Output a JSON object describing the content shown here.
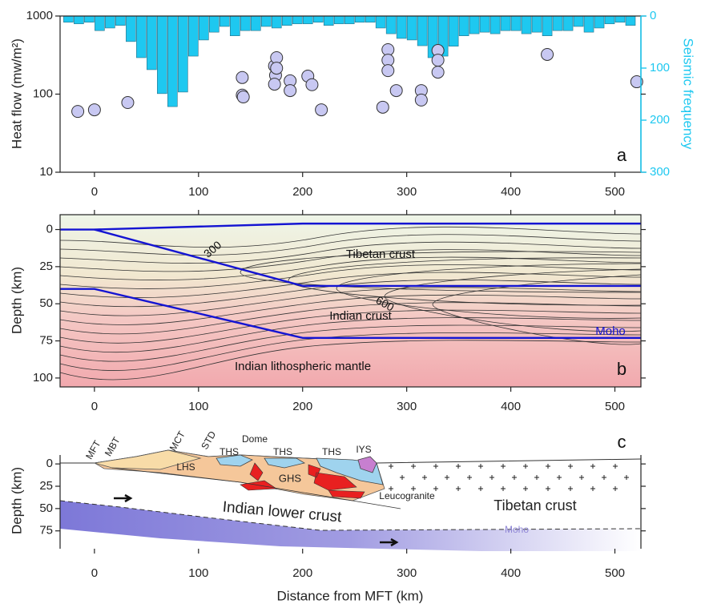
{
  "chart_data": [
    {
      "type": "combo",
      "ylabel": "Heat flow (mw/m²)",
      "y2label": "Seismic frequency",
      "xlim": [
        -33,
        525
      ],
      "xticks": [
        0,
        100,
        200,
        300,
        400,
        500
      ],
      "ylim": [
        10,
        1000
      ],
      "yticks": [
        10,
        100,
        1000
      ],
      "log_y": true,
      "y2lim": [
        0,
        300
      ],
      "y2ticks": [
        0,
        100,
        200,
        300
      ],
      "y2_inverted": true,
      "y2_color": "#1ec8f0",
      "series": [
        {
          "type": "bar",
          "axis": "y2",
          "color": "#1ec8f0",
          "x": [
            -25,
            -15,
            -5,
            5,
            15,
            25,
            35,
            45,
            55,
            65,
            75,
            85,
            95,
            105,
            115,
            125,
            135,
            145,
            155,
            165,
            175,
            185,
            195,
            205,
            215,
            225,
            235,
            245,
            255,
            265,
            275,
            285,
            295,
            305,
            315,
            325,
            335,
            345,
            355,
            365,
            375,
            385,
            395,
            405,
            415,
            425,
            435,
            445,
            455,
            465,
            475,
            485,
            495,
            505,
            515
          ],
          "values": [
            12,
            15,
            12,
            28,
            23,
            18,
            49,
            80,
            103,
            149,
            174,
            146,
            77,
            46,
            31,
            20,
            38,
            28,
            28,
            20,
            23,
            18,
            15,
            15,
            12,
            18,
            15,
            15,
            12,
            12,
            23,
            34,
            43,
            46,
            57,
            80,
            77,
            58,
            38,
            34,
            31,
            34,
            28,
            28,
            34,
            31,
            38,
            28,
            28,
            20,
            31,
            23,
            15,
            12,
            18
          ]
        },
        {
          "type": "scatter",
          "color": "#c8c8f2",
          "x": [
            -16,
            0,
            32,
            142,
            143,
            142,
            173,
            175,
            174,
            173,
            175,
            188,
            188,
            205,
            209,
            218,
            277,
            282,
            282,
            282,
            290,
            314,
            314,
            330,
            330,
            330,
            435,
            521
          ],
          "values": [
            60,
            63,
            78,
            97,
            92,
            163,
            230,
            293,
            174,
            134,
            215,
            148,
            111,
            170,
            132,
            63,
            68,
            371,
            272,
            200,
            111,
            111,
            84,
            362,
            272,
            191,
            322,
            144
          ]
        }
      ],
      "annotations": [
        "a"
      ]
    },
    {
      "type": "line",
      "ylabel": "Depth (km)",
      "xlim": [
        -33,
        525
      ],
      "xticks": [
        0,
        100,
        200,
        300,
        400,
        500
      ],
      "ylim": [
        -10,
        106
      ],
      "yticks": [
        0,
        25,
        50,
        75,
        100
      ],
      "y_inverted": true,
      "series": [
        {
          "color": "#1414d2",
          "x": [
            -33,
            0,
            200,
            525
          ],
          "values": [
            0,
            0,
            -4,
            -4
          ]
        },
        {
          "color": "#1414d2",
          "x": [
            0,
            200,
            525
          ],
          "values": [
            0,
            38,
            38
          ]
        },
        {
          "color": "#1414d2",
          "x": [
            -33,
            0,
            200,
            525
          ],
          "values": [
            40,
            40,
            73,
            73
          ]
        }
      ],
      "annotations": [
        "300",
        "600",
        "Tibetan crust",
        "Indian crust",
        "Moho",
        "Indian lithospheric mantle",
        "b"
      ]
    },
    {
      "type": "section",
      "ylabel": "Depth (km)",
      "xlabel": "Distance from MFT (km)",
      "xlim": [
        -33,
        525
      ],
      "xticks": [
        0,
        100,
        200,
        300,
        400,
        500
      ],
      "ylim": [
        -10,
        95
      ],
      "yticks": [
        0,
        25,
        50,
        75
      ],
      "y_inverted": true,
      "annotations": [
        "MFT",
        "MBT",
        "MCT",
        "STD",
        "Dome",
        "THS",
        "THS",
        "THS",
        "IYS",
        "LHS",
        "GHS",
        "Leucogranite",
        "Indian lower crust",
        "Tibetan crust",
        "Moho",
        "c"
      ]
    }
  ]
}
